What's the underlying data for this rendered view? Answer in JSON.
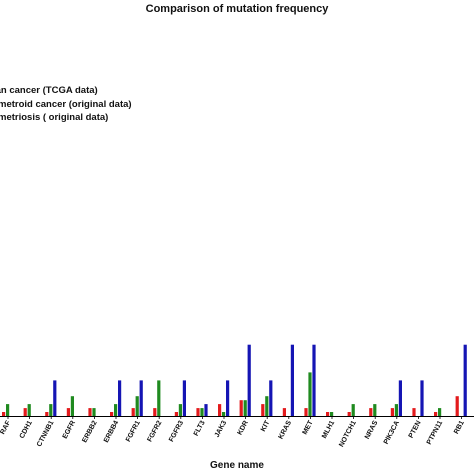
{
  "chart_data": {
    "type": "bar",
    "title": "Comparison of mutation frequency",
    "xlabel": "Gene name",
    "ylabel": "",
    "legend": {
      "placement": "top-left",
      "entries": [
        "Ovarian cancer (TCGA data)",
        "Endometroid cancer (original data)",
        "Endometriosis ( original data)"
      ],
      "visible_text": [
        "ian cancer (TCGA data)",
        "metroid cancer (original data)",
        "metriosis ( original data)"
      ]
    },
    "categories": [
      "BRAF",
      "CDH1",
      "CTNNB1",
      "EGFR",
      "ERBB2",
      "ERBB4",
      "FGFR1",
      "FGFR2",
      "FGFR3",
      "FLT3",
      "JAK3",
      "KDR",
      "KIT",
      "KRAS",
      "MET",
      "MLH1",
      "NOTCH1",
      "NRAS",
      "PIK3CA",
      "PTEN",
      "PTPN11",
      "RB1"
    ],
    "category_labels_visible": [
      "RAF",
      "CDH1",
      "CTNNB1",
      "EGFR",
      "ERBB2",
      "ERBB4",
      "FGFR1",
      "FGFR2",
      "FGFR3",
      "FLT3",
      "JAK3",
      "KDR",
      "KIT",
      "KRAS",
      "MET",
      "MLH1",
      "NOTCH1",
      "NRAS",
      "PIK3CA",
      "PTEN",
      "PTPN11",
      "RB1"
    ],
    "ylim": [
      0,
      100
    ],
    "grid": false,
    "series": [
      {
        "name": "Ovarian cancer (TCGA data)",
        "color": "#e31a1c",
        "values": [
          1,
          2,
          1,
          2,
          2,
          1,
          2,
          2,
          1,
          2,
          3,
          4,
          3,
          2,
          2,
          1,
          1,
          2,
          2,
          2,
          1,
          5
        ]
      },
      {
        "name": "Endometroid cancer (original data)",
        "color": "#1f8a1f",
        "values": [
          3,
          3,
          3,
          5,
          2,
          3,
          5,
          9,
          3,
          2,
          1,
          4,
          5,
          0,
          11,
          1,
          3,
          3,
          3,
          0,
          2,
          0
        ]
      },
      {
        "name": "Endometriosis ( original data)",
        "color": "#1515b4",
        "values": [
          0,
          0,
          9,
          0,
          0,
          9,
          9,
          0,
          9,
          3,
          9,
          18,
          9,
          18,
          18,
          0,
          0,
          0,
          9,
          9,
          0,
          18
        ]
      }
    ]
  }
}
